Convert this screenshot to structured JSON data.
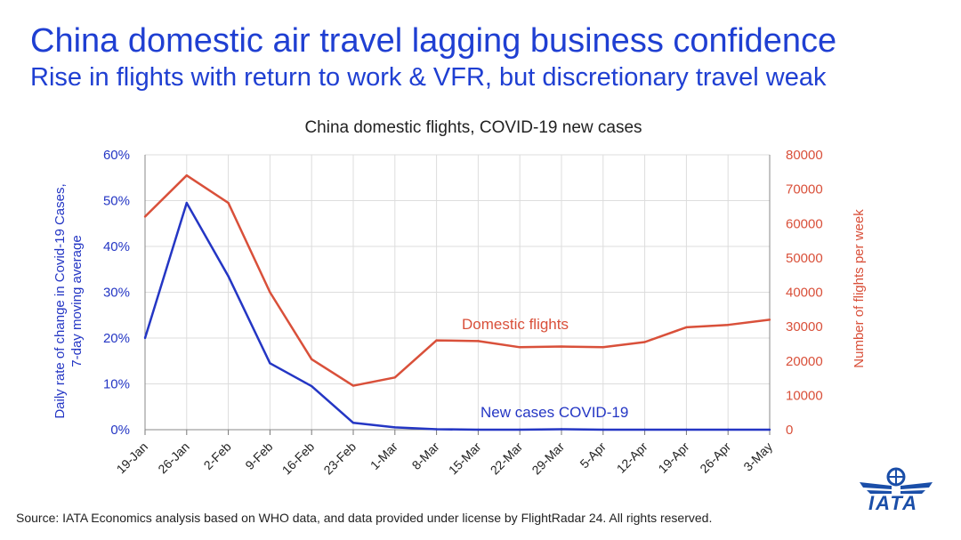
{
  "title": "China domestic air travel lagging business confidence",
  "subtitle": "Rise in flights with return to work & VFR, but discretionary travel weak",
  "source": "Source: IATA Economics analysis based on WHO data, and data provided under license by FlightRadar 24. All rights reserved.",
  "logo_text": "IATA",
  "colors": {
    "left": "#2436c4",
    "right": "#d9503a",
    "title": "#1f3fd2",
    "grid": "#dddddd"
  },
  "chart_data": {
    "type": "line",
    "title": "China domestic flights, COVID-19 new cases",
    "categories": [
      "19-Jan",
      "26-Jan",
      "2-Feb",
      "9-Feb",
      "16-Feb",
      "23-Feb",
      "1-Mar",
      "8-Mar",
      "15-Mar",
      "22-Mar",
      "29-Mar",
      "5-Apr",
      "12-Apr",
      "19-Apr",
      "26-Apr",
      "3-May"
    ],
    "y_left": {
      "label_line1": "Daily rate of change in Covid-19 Cases,",
      "label_line2": "7-day moving average",
      "ticks": [
        "0%",
        "10%",
        "20%",
        "30%",
        "40%",
        "50%",
        "60%"
      ],
      "ylim": [
        0,
        0.6
      ]
    },
    "y_right": {
      "label": "Number of flights per week",
      "ticks": [
        "0",
        "10000",
        "20000",
        "30000",
        "40000",
        "50000",
        "60000",
        "70000",
        "80000"
      ],
      "ylim": [
        0,
        80000
      ]
    },
    "series": [
      {
        "name": "New cases COVID-19",
        "axis": "left",
        "values": [
          0.2,
          0.495,
          0.335,
          0.145,
          0.095,
          0.015,
          0.005,
          0.001,
          0.0,
          0.0,
          0.001,
          0.0,
          0.0,
          0.0,
          0.0,
          0.0
        ]
      },
      {
        "name": "Domestic flights",
        "axis": "right",
        "values": [
          62000,
          74000,
          66000,
          40000,
          20500,
          12800,
          15200,
          26000,
          25800,
          24000,
          24200,
          24000,
          25500,
          29800,
          30500,
          32000
        ]
      }
    ]
  }
}
